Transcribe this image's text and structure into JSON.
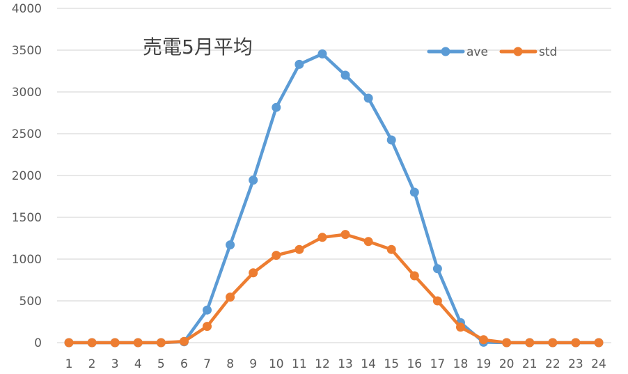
{
  "chart_data": {
    "type": "line",
    "title": "売電5月平均",
    "xlabel": "",
    "ylabel": "",
    "x": [
      1,
      2,
      3,
      4,
      5,
      6,
      7,
      8,
      9,
      10,
      11,
      12,
      13,
      14,
      15,
      16,
      17,
      18,
      19,
      20,
      21,
      22,
      23,
      24
    ],
    "series": [
      {
        "name": "ave",
        "color": "#5B9BD5",
        "values": [
          0,
          0,
          0,
          0,
          0,
          10,
          390,
          1170,
          1945,
          2815,
          3330,
          3455,
          3200,
          2925,
          2425,
          1800,
          885,
          240,
          5,
          0,
          0,
          0,
          0,
          0
        ]
      },
      {
        "name": "std",
        "color": "#ED7D31",
        "values": [
          0,
          0,
          0,
          0,
          0,
          15,
          195,
          545,
          835,
          1045,
          1115,
          1260,
          1295,
          1210,
          1115,
          800,
          500,
          185,
          35,
          0,
          0,
          0,
          0,
          0
        ]
      }
    ],
    "ylim": [
      0,
      4000
    ],
    "yticks": [
      0,
      500,
      1000,
      1500,
      2000,
      2500,
      3000,
      3500,
      4000
    ],
    "grid": true,
    "legend_position": "top-right"
  },
  "title": "売電5月平均",
  "legend": [
    {
      "label": "ave",
      "color": "#5B9BD5"
    },
    {
      "label": "std",
      "color": "#ED7D31"
    }
  ]
}
